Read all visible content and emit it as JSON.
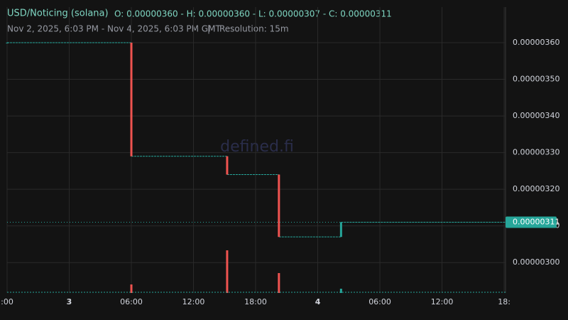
{
  "chart_data": {
    "type": "candlestick",
    "title": "USD/Noticing (solana)",
    "ohlc": "O: 0.00000360 - H: 0.00000360 - L: 0.00000307 - C: 0.00000311",
    "subtitle": "Nov 2, 2025, 6:03 PM - Nov 4, 2025, 6:03 PM GMT",
    "separator": "|",
    "resolution": "Resolution: 15m",
    "watermark": "defined.fi",
    "up_color": "#26a69a",
    "down_color": "#ef5350",
    "xlim": [
      "Nov 2, 18:00",
      "Nov 4, 18:08"
    ],
    "xticks": [
      {
        "value": "Nov 2, 18:00",
        "label": ":00"
      },
      {
        "value": "Nov 3, 00:00",
        "label": "3"
      },
      {
        "value": "Nov 3, 06:00",
        "label": "06:00"
      },
      {
        "value": "Nov 3, 12:00",
        "label": "12:00"
      },
      {
        "value": "Nov 3, 18:00",
        "label": "18:00"
      },
      {
        "value": "Nov 4, 00:00",
        "label": "4"
      },
      {
        "value": "Nov 4, 06:00",
        "label": "06:00"
      },
      {
        "value": "Nov 4, 12:00",
        "label": "12:00"
      },
      {
        "value": "Nov 4, 18:00",
        "label": "18:"
      }
    ],
    "ylim": [
      2.917e-06,
      3.697e-06
    ],
    "yticks": [
      {
        "value": 3e-06,
        "label": "0.00000300"
      },
      {
        "value": 3.1e-06,
        "label": "0.00000310"
      },
      {
        "value": 3.2e-06,
        "label": "0.00000320"
      },
      {
        "value": 3.3e-06,
        "label": "0.00000330"
      },
      {
        "value": 3.4e-06,
        "label": "0.00000340"
      },
      {
        "value": 3.5e-06,
        "label": "0.00000350"
      },
      {
        "value": 3.6e-06,
        "label": "0.00000360"
      }
    ],
    "grid": true,
    "candles": {
      "x": [
        "Nov 2, 18:00",
        "Nov 3, 06:00",
        "Nov 3, 15:15",
        "Nov 3, 20:15",
        "Nov 4, 02:15"
      ],
      "open": [
        3.6e-06,
        3.6e-06,
        3.29e-06,
        3.24e-06,
        3.07e-06
      ],
      "high": [
        3.6e-06,
        3.6e-06,
        3.29e-06,
        3.24e-06,
        3.11e-06
      ],
      "low": [
        3.6e-06,
        3.29e-06,
        3.24e-06,
        3.07e-06,
        3.07e-06
      ],
      "close": [
        3.6e-06,
        3.29e-06,
        3.24e-06,
        3.07e-06,
        3.11e-06
      ],
      "volume": [
        0,
        12,
        60,
        28,
        6
      ]
    },
    "last_price": {
      "value": 3.11e-06,
      "label": "0.00000311"
    }
  }
}
